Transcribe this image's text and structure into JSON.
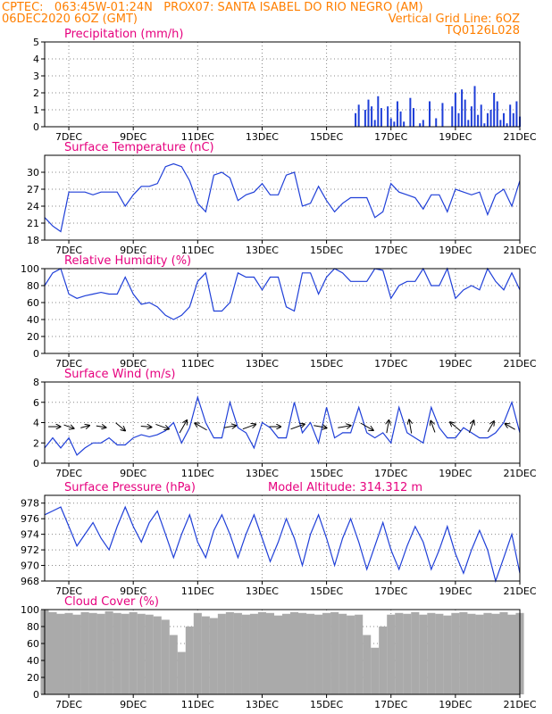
{
  "header": {
    "left_line1": "CPTEC:   063:45W-01:24N   PROX07: SANTA ISABEL DO RIO NEGRO (AM)",
    "left_line2": "06DEC2020 6OZ (GMT)",
    "right_line2": "Vertical Grid Line: 6OZ",
    "right_line3": "TQ0126L028"
  },
  "colors": {
    "header": "#ff7f00",
    "title": "#e6007e",
    "series": "#1f3fd8",
    "bars": "#1f3fd8",
    "cloud": "#aaaaaa",
    "grid": "#888888",
    "arrows": "#000000"
  },
  "chart_data": [
    {
      "type": "bar",
      "title": "Precipitation (mm/h)",
      "xlabel": "",
      "ylabel": "",
      "ylim": [
        0,
        5
      ],
      "yticks": [
        0,
        1,
        2,
        3,
        4,
        5
      ],
      "xticks": [
        "7DEC",
        "9DEC",
        "11DEC",
        "13DEC",
        "15DEC",
        "17DEC",
        "19DEC",
        "21DEC"
      ],
      "x": [
        15.9,
        16.0,
        16.2,
        16.3,
        16.4,
        16.5,
        16.6,
        16.7,
        16.9,
        17.0,
        17.1,
        17.2,
        17.3,
        17.4,
        17.6,
        17.7,
        17.9,
        18.0,
        18.2,
        18.4,
        18.6,
        18.9,
        19.0,
        19.1,
        19.2,
        19.3,
        19.4,
        19.5,
        19.6,
        19.7,
        19.8,
        19.9,
        20.0,
        20.1,
        20.2,
        20.3,
        20.4,
        20.5,
        20.6,
        20.7,
        20.8,
        20.9,
        21.0
      ],
      "values": [
        0.8,
        1.3,
        1.0,
        1.6,
        1.2,
        0.4,
        1.8,
        1.1,
        1.2,
        0.5,
        0.3,
        1.5,
        0.9,
        0.3,
        1.7,
        1.1,
        0.2,
        0.4,
        1.5,
        0.5,
        1.4,
        1.2,
        2.0,
        0.8,
        2.2,
        1.6,
        0.4,
        1.2,
        2.4,
        0.7,
        1.3,
        0.2,
        0.8,
        1.0,
        2.0,
        1.5,
        0.4,
        0.8,
        0.2,
        1.3,
        0.8,
        1.5,
        0.6
      ]
    },
    {
      "type": "line",
      "title": "Surface Temperature (nC)",
      "xlabel": "",
      "ylabel": "",
      "ylim": [
        18,
        33
      ],
      "yticks": [
        18,
        21,
        24,
        27,
        30
      ],
      "xticks": [
        "7DEC",
        "9DEC",
        "11DEC",
        "13DEC",
        "15DEC",
        "17DEC",
        "19DEC",
        "21DEC"
      ],
      "series": [
        {
          "x": [
            6.25,
            6.5,
            6.75,
            7.0,
            7.25,
            7.5,
            7.75,
            8.0,
            8.25,
            8.5,
            8.75,
            9.0,
            9.25,
            9.5,
            9.75,
            10.0,
            10.25,
            10.5,
            10.75,
            11.0,
            11.25,
            11.5,
            11.75,
            12.0,
            12.25,
            12.5,
            12.75,
            13.0,
            13.25,
            13.5,
            13.75,
            14.0,
            14.25,
            14.5,
            14.75,
            15.0,
            15.25,
            15.5,
            15.75,
            16.0,
            16.25,
            16.5,
            16.75,
            17.0,
            17.25,
            17.5,
            17.75,
            18.0,
            18.25,
            18.5,
            18.75,
            19.0,
            19.25,
            19.5,
            19.75,
            20.0,
            20.25,
            20.5,
            20.75,
            21.0
          ],
          "values": [
            22.0,
            20.5,
            19.5,
            26.5,
            26.5,
            26.5,
            26.0,
            26.5,
            26.5,
            26.5,
            24.0,
            26.0,
            27.5,
            27.5,
            28.0,
            31.0,
            31.5,
            31.0,
            28.5,
            24.5,
            23.0,
            29.5,
            30.0,
            29.0,
            25.0,
            26.0,
            26.5,
            28.0,
            26.0,
            26.0,
            29.5,
            30.0,
            24.0,
            24.5,
            27.5,
            25.0,
            23.0,
            24.5,
            25.5,
            25.5,
            25.5,
            22.0,
            23.0,
            28.0,
            26.5,
            26.0,
            25.5,
            23.5,
            26.0,
            26.0,
            23.0,
            27.0,
            26.5,
            26.0,
            26.5,
            22.5,
            26.0,
            27.0,
            24.0,
            28.5
          ]
        }
      ]
    },
    {
      "type": "line",
      "title": "Relative Humidity (%)",
      "xlabel": "",
      "ylabel": "",
      "ylim": [
        0,
        100
      ],
      "yticks": [
        0,
        20,
        40,
        60,
        80,
        100
      ],
      "xticks": [
        "7DEC",
        "9DEC",
        "11DEC",
        "13DEC",
        "15DEC",
        "17DEC",
        "19DEC",
        "21DEC"
      ],
      "series": [
        {
          "x": [
            6.25,
            6.5,
            6.75,
            7.0,
            7.25,
            7.5,
            7.75,
            8.0,
            8.25,
            8.5,
            8.75,
            9.0,
            9.25,
            9.5,
            9.75,
            10.0,
            10.25,
            10.5,
            10.75,
            11.0,
            11.25,
            11.5,
            11.75,
            12.0,
            12.25,
            12.5,
            12.75,
            13.0,
            13.25,
            13.5,
            13.75,
            14.0,
            14.25,
            14.5,
            14.75,
            15.0,
            15.25,
            15.5,
            15.75,
            16.0,
            16.25,
            16.5,
            16.75,
            17.0,
            17.25,
            17.5,
            17.75,
            18.0,
            18.25,
            18.5,
            18.75,
            19.0,
            19.25,
            19.5,
            19.75,
            20.0,
            20.25,
            20.5,
            20.75,
            21.0
          ],
          "values": [
            80,
            95,
            100,
            70,
            65,
            68,
            70,
            72,
            70,
            70,
            90,
            70,
            58,
            60,
            55,
            45,
            40,
            45,
            55,
            85,
            95,
            50,
            50,
            60,
            95,
            90,
            90,
            75,
            90,
            90,
            55,
            50,
            95,
            95,
            70,
            90,
            100,
            95,
            85,
            85,
            85,
            100,
            98,
            65,
            80,
            85,
            85,
            100,
            80,
            80,
            100,
            65,
            75,
            80,
            75,
            100,
            85,
            75,
            95,
            75
          ]
        }
      ]
    },
    {
      "type": "line",
      "title": "Surface Wind (m/s)",
      "xlabel": "",
      "ylabel": "",
      "ylim": [
        0,
        8
      ],
      "yticks": [
        0,
        2,
        4,
        6,
        8
      ],
      "xticks": [
        "7DEC",
        "9DEC",
        "11DEC",
        "13DEC",
        "15DEC",
        "17DEC",
        "19DEC",
        "21DEC"
      ],
      "series": [
        {
          "x": [
            6.25,
            6.5,
            6.75,
            7.0,
            7.25,
            7.5,
            7.75,
            8.0,
            8.25,
            8.5,
            8.75,
            9.0,
            9.25,
            9.5,
            9.75,
            10.0,
            10.25,
            10.5,
            10.75,
            11.0,
            11.25,
            11.5,
            11.75,
            12.0,
            12.25,
            12.5,
            12.75,
            13.0,
            13.25,
            13.5,
            13.75,
            14.0,
            14.25,
            14.5,
            14.75,
            15.0,
            15.25,
            15.5,
            15.75,
            16.0,
            16.25,
            16.5,
            16.75,
            17.0,
            17.25,
            17.5,
            17.75,
            18.0,
            18.25,
            18.5,
            18.75,
            19.0,
            19.25,
            19.5,
            19.75,
            20.0,
            20.25,
            20.5,
            20.75,
            21.0
          ],
          "values": [
            1.5,
            2.5,
            1.5,
            2.5,
            0.8,
            1.5,
            2.0,
            2.0,
            2.5,
            1.8,
            1.8,
            2.5,
            2.8,
            2.6,
            2.8,
            3.2,
            4.0,
            2.0,
            3.5,
            6.5,
            4.0,
            2.5,
            2.5,
            6.0,
            3.5,
            3.0,
            1.5,
            4.0,
            3.5,
            2.5,
            2.5,
            6.0,
            3.0,
            4.0,
            2.0,
            5.5,
            2.5,
            3.0,
            3.0,
            5.5,
            3.0,
            2.5,
            3.0,
            2.0,
            5.5,
            3.0,
            2.5,
            2.0,
            5.5,
            3.5,
            2.5,
            2.5,
            3.5,
            3.0,
            2.5,
            2.5,
            3.0,
            4.0,
            6.0,
            3.0
          ]
        }
      ],
      "wind_vectors": [
        {
          "x": 6.55,
          "speed": 3.0,
          "dir_deg": 90
        },
        {
          "x": 7.0,
          "speed": 2.6,
          "dir_deg": 110
        },
        {
          "x": 7.5,
          "speed": 2.2,
          "dir_deg": 75
        },
        {
          "x": 8.0,
          "speed": 2.4,
          "dir_deg": 100
        },
        {
          "x": 8.6,
          "speed": 3.0,
          "dir_deg": 130
        },
        {
          "x": 9.4,
          "speed": 2.6,
          "dir_deg": 95
        },
        {
          "x": 9.9,
          "speed": 3.4,
          "dir_deg": 110
        },
        {
          "x": 10.55,
          "speed": 3.6,
          "dir_deg": 30
        },
        {
          "x": 11.1,
          "speed": 3.4,
          "dir_deg": 300
        },
        {
          "x": 12.0,
          "speed": 3.0,
          "dir_deg": 80
        },
        {
          "x": 12.6,
          "speed": 3.4,
          "dir_deg": 70
        },
        {
          "x": 13.4,
          "speed": 2.8,
          "dir_deg": 90
        },
        {
          "x": 14.1,
          "speed": 3.6,
          "dir_deg": 70
        },
        {
          "x": 14.8,
          "speed": 3.2,
          "dir_deg": 100
        },
        {
          "x": 15.55,
          "speed": 3.2,
          "dir_deg": 80
        },
        {
          "x": 16.25,
          "speed": 3.6,
          "dir_deg": 120
        },
        {
          "x": 16.9,
          "speed": 3.2,
          "dir_deg": 10
        },
        {
          "x": 17.6,
          "speed": 3.4,
          "dir_deg": 350
        },
        {
          "x": 18.3,
          "speed": 3.0,
          "dir_deg": 340
        },
        {
          "x": 19.0,
          "speed": 3.4,
          "dir_deg": 310
        },
        {
          "x": 19.5,
          "speed": 3.2,
          "dir_deg": 20
        },
        {
          "x": 20.1,
          "speed": 3.0,
          "dir_deg": 30
        },
        {
          "x": 20.7,
          "speed": 2.8,
          "dir_deg": 300
        }
      ]
    },
    {
      "type": "line",
      "title": "Surface Pressure (hPa)",
      "subtitle": "Model Altitude: 314.312 m",
      "xlabel": "",
      "ylabel": "",
      "ylim": [
        968,
        979
      ],
      "yticks": [
        968,
        970,
        972,
        974,
        976,
        978
      ],
      "xticks": [
        "7DEC",
        "9DEC",
        "11DEC",
        "13DEC",
        "15DEC",
        "17DEC",
        "19DEC",
        "21DEC"
      ],
      "series": [
        {
          "x": [
            6.25,
            6.5,
            6.75,
            7.0,
            7.25,
            7.5,
            7.75,
            8.0,
            8.25,
            8.5,
            8.75,
            9.0,
            9.25,
            9.5,
            9.75,
            10.0,
            10.25,
            10.5,
            10.75,
            11.0,
            11.25,
            11.5,
            11.75,
            12.0,
            12.25,
            12.5,
            12.75,
            13.0,
            13.25,
            13.5,
            13.75,
            14.0,
            14.25,
            14.5,
            14.75,
            15.0,
            15.25,
            15.5,
            15.75,
            16.0,
            16.25,
            16.5,
            16.75,
            17.0,
            17.25,
            17.5,
            17.75,
            18.0,
            18.25,
            18.5,
            18.75,
            19.0,
            19.25,
            19.5,
            19.75,
            20.0,
            20.25,
            20.5,
            20.75,
            21.0
          ],
          "values": [
            976.5,
            977.0,
            977.5,
            975.0,
            972.5,
            974.0,
            975.5,
            973.5,
            972.0,
            975.0,
            977.5,
            975.0,
            973.0,
            975.5,
            977.0,
            974.0,
            971.0,
            974.0,
            976.5,
            973.0,
            971.0,
            974.5,
            976.5,
            974.0,
            971.0,
            974.0,
            976.5,
            973.5,
            970.5,
            973.0,
            976.0,
            973.5,
            970.0,
            974.0,
            976.5,
            973.5,
            970.0,
            973.5,
            976.0,
            973.0,
            969.5,
            972.5,
            975.5,
            972.0,
            969.5,
            972.5,
            975.0,
            973.0,
            969.5,
            972.0,
            975.0,
            971.5,
            969.0,
            972.0,
            974.5,
            972.0,
            968.0,
            971.0,
            974.0,
            969.0
          ]
        }
      ]
    },
    {
      "type": "bar",
      "title": "Cloud Cover (%)",
      "xlabel": "",
      "ylabel": "",
      "ylim": [
        0,
        100
      ],
      "yticks": [
        0,
        20,
        40,
        60,
        80,
        100
      ],
      "xticks": [
        "7DEC",
        "9DEC",
        "11DEC",
        "13DEC",
        "15DEC",
        "17DEC",
        "19DEC",
        "21DEC"
      ],
      "x": [
        6.25,
        6.5,
        6.75,
        7.0,
        7.25,
        7.5,
        7.75,
        8.0,
        8.25,
        8.5,
        8.75,
        9.0,
        9.25,
        9.5,
        9.75,
        10.0,
        10.25,
        10.5,
        10.75,
        11.0,
        11.25,
        11.5,
        11.75,
        12.0,
        12.25,
        12.5,
        12.75,
        13.0,
        13.25,
        13.5,
        13.75,
        14.0,
        14.25,
        14.5,
        14.75,
        15.0,
        15.25,
        15.5,
        15.75,
        16.0,
        16.25,
        16.5,
        16.75,
        17.0,
        17.25,
        17.5,
        17.75,
        18.0,
        18.25,
        18.5,
        18.75,
        19.0,
        19.25,
        19.5,
        19.75,
        20.0,
        20.25,
        20.5,
        20.75,
        21.0
      ],
      "values": [
        100,
        97,
        95,
        96,
        94,
        97,
        96,
        95,
        98,
        96,
        95,
        97,
        95,
        94,
        92,
        88,
        70,
        50,
        80,
        96,
        92,
        90,
        95,
        97,
        96,
        94,
        95,
        97,
        96,
        93,
        95,
        97,
        96,
        95,
        94,
        96,
        97,
        95,
        93,
        94,
        70,
        55,
        80,
        94,
        96,
        95,
        97,
        94,
        96,
        95,
        93,
        96,
        97,
        95,
        94,
        96,
        95,
        97,
        94,
        96
      ]
    }
  ]
}
